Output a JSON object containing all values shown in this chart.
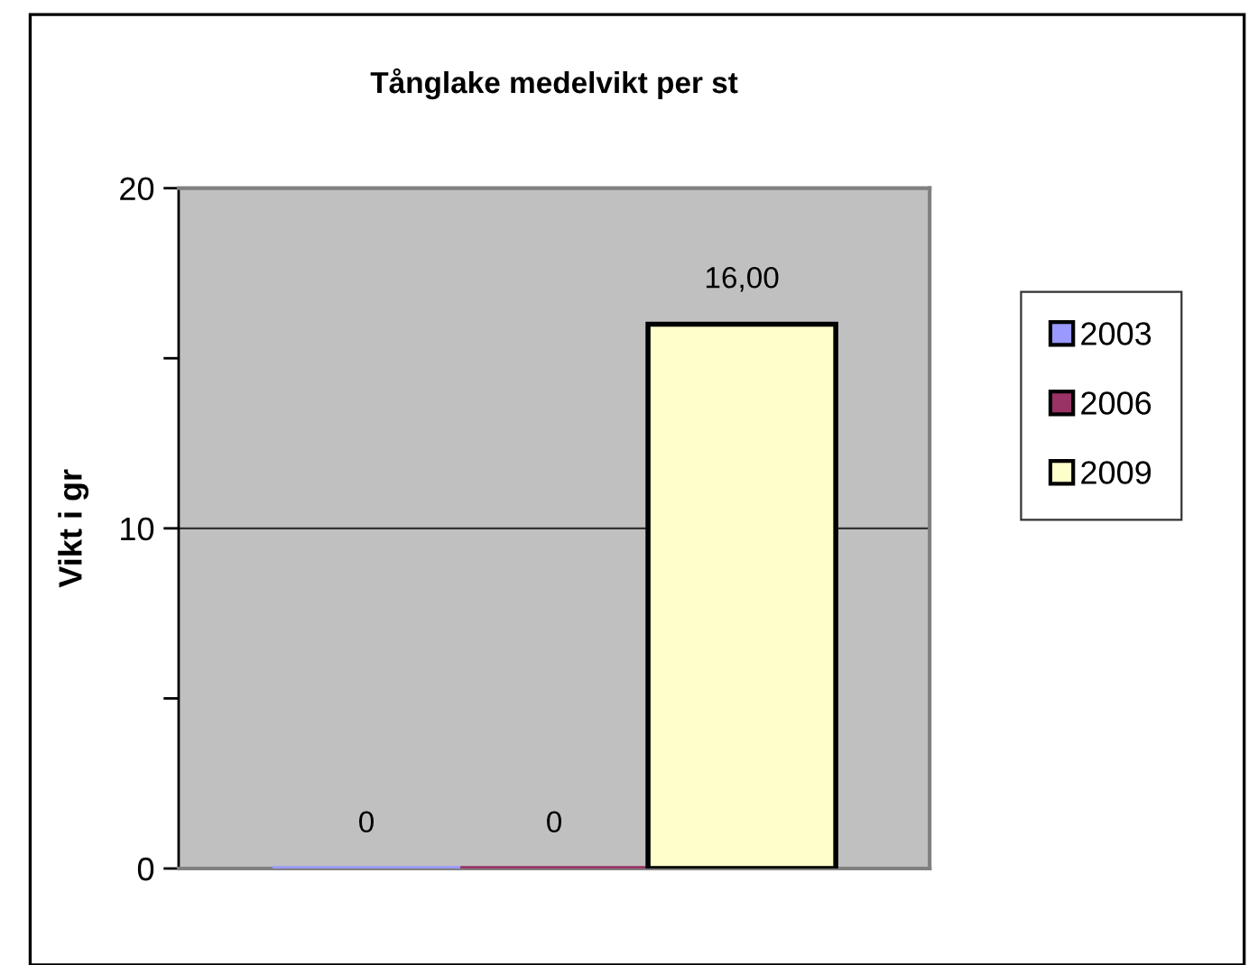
{
  "chart_data": {
    "type": "bar",
    "title": "Tånglake medelvikt per st",
    "ylabel": "Vikt i gr",
    "categories": [
      null
    ],
    "series": [
      {
        "name": "2003",
        "color": "#9999ff",
        "values": [
          0
        ],
        "value_labels": [
          "0"
        ]
      },
      {
        "name": "2006",
        "color": "#993366",
        "values": [
          0
        ],
        "value_labels": [
          "0"
        ]
      },
      {
        "name": "2009",
        "color": "#ffffcc",
        "values": [
          16
        ],
        "value_labels": [
          "16,00"
        ]
      }
    ],
    "ylim": [
      0,
      20
    ],
    "yticks": [
      0,
      {
        "value": 5,
        "label": null
      },
      10,
      {
        "value": 15,
        "label": null
      },
      20
    ],
    "grid": "y",
    "legend": "right"
  }
}
